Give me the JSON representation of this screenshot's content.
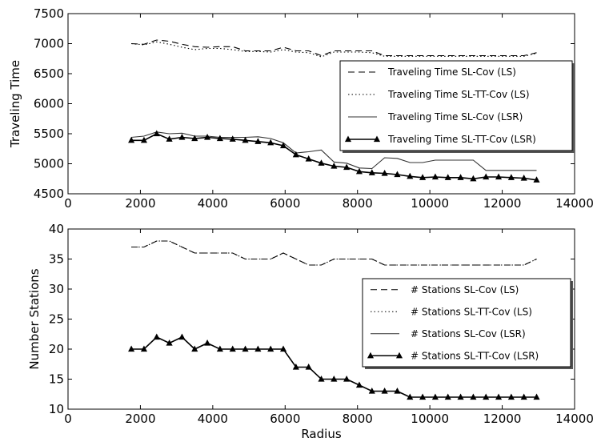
{
  "chart_data": [
    {
      "type": "line",
      "xlabel": "",
      "ylabel": "Traveling Time",
      "xlim": [
        0,
        14000
      ],
      "ylim": [
        4500,
        7500
      ],
      "xticks": [
        0,
        2000,
        4000,
        6000,
        8000,
        10000,
        12000,
        14000
      ],
      "yticks": [
        4500,
        5000,
        5500,
        6000,
        6500,
        7000,
        7500
      ],
      "legend_position": "center-right",
      "x": [
        1750,
        2100,
        2450,
        2800,
        3150,
        3500,
        3850,
        4200,
        4550,
        4900,
        5250,
        5600,
        5950,
        6300,
        6650,
        7000,
        7350,
        7700,
        8050,
        8400,
        8750,
        9100,
        9450,
        9800,
        10150,
        10500,
        10850,
        11200,
        11550,
        11900,
        12250,
        12600,
        12950
      ],
      "series": [
        {
          "name": "Traveling Time SL-Cov (LS)",
          "style": "dashed",
          "marker": "none",
          "values": [
            7000,
            6990,
            7060,
            7040,
            6990,
            6950,
            6940,
            6950,
            6950,
            6880,
            6880,
            6880,
            6940,
            6880,
            6880,
            6800,
            6880,
            6880,
            6880,
            6880,
            6800,
            6800,
            6800,
            6800,
            6800,
            6800,
            6800,
            6800,
            6800,
            6800,
            6800,
            6800,
            6850
          ]
        },
        {
          "name": "Traveling Time SL-TT-Cov (LS)",
          "style": "dotted",
          "marker": "none",
          "values": [
            7000,
            6980,
            7030,
            6990,
            6940,
            6900,
            6920,
            6920,
            6900,
            6870,
            6870,
            6860,
            6900,
            6860,
            6850,
            6780,
            6860,
            6860,
            6860,
            6850,
            6790,
            6790,
            6790,
            6790,
            6790,
            6790,
            6790,
            6790,
            6790,
            6790,
            6790,
            6790,
            6840
          ]
        },
        {
          "name": "Traveling Time SL-Cov (LSR)",
          "style": "solid",
          "marker": "none",
          "values": [
            5440,
            5460,
            5530,
            5500,
            5510,
            5460,
            5460,
            5440,
            5440,
            5440,
            5450,
            5420,
            5350,
            5180,
            5200,
            5230,
            5030,
            5010,
            4930,
            4920,
            5100,
            5090,
            5020,
            5020,
            5060,
            5060,
            5060,
            5060,
            4890,
            4890,
            4890,
            4890,
            4890
          ]
        },
        {
          "name": "Traveling Time SL-TT-Cov (LSR)",
          "style": "solid",
          "marker": "triangle",
          "values": [
            5390,
            5390,
            5500,
            5410,
            5440,
            5420,
            5440,
            5420,
            5410,
            5390,
            5370,
            5350,
            5300,
            5150,
            5080,
            5010,
            4960,
            4940,
            4870,
            4850,
            4840,
            4820,
            4790,
            4770,
            4780,
            4770,
            4770,
            4750,
            4780,
            4780,
            4770,
            4760,
            4730
          ]
        }
      ]
    },
    {
      "type": "line",
      "xlabel": "Radius",
      "ylabel": "Number Stations",
      "xlim": [
        0,
        14000
      ],
      "ylim": [
        10,
        40
      ],
      "xticks": [
        0,
        2000,
        4000,
        6000,
        8000,
        10000,
        12000,
        14000
      ],
      "yticks": [
        10,
        15,
        20,
        25,
        30,
        35,
        40
      ],
      "legend_position": "center-right",
      "x": [
        1750,
        2100,
        2450,
        2800,
        3150,
        3500,
        3850,
        4200,
        4550,
        4900,
        5250,
        5600,
        5950,
        6300,
        6650,
        7000,
        7350,
        7700,
        8050,
        8400,
        8750,
        9100,
        9450,
        9800,
        10150,
        10500,
        10850,
        11200,
        11550,
        11900,
        12250,
        12600,
        12950
      ],
      "series": [
        {
          "name": "# Stations SL-Cov (LS)",
          "style": "dashed",
          "marker": "none",
          "values": [
            37,
            37,
            38,
            38,
            37,
            36,
            36,
            36,
            36,
            35,
            35,
            35,
            36,
            35,
            34,
            34,
            35,
            35,
            35,
            35,
            34,
            34,
            34,
            34,
            34,
            34,
            34,
            34,
            34,
            34,
            34,
            34,
            35
          ]
        },
        {
          "name": "# Stations SL-TT-Cov (LS)",
          "style": "dotted",
          "marker": "none",
          "values": [
            37,
            37,
            38,
            38,
            37,
            36,
            36,
            36,
            36,
            35,
            35,
            35,
            36,
            35,
            34,
            34,
            35,
            35,
            35,
            35,
            34,
            34,
            34,
            34,
            34,
            34,
            34,
            34,
            34,
            34,
            34,
            34,
            35
          ]
        },
        {
          "name": "# Stations SL-Cov (LSR)",
          "style": "solid",
          "marker": "none",
          "values": [
            20,
            20,
            22,
            21,
            22,
            20,
            21,
            20,
            20,
            20,
            20,
            20,
            20,
            17,
            17,
            15,
            15,
            15,
            14,
            13,
            13,
            13,
            12,
            12,
            12,
            12,
            12,
            12,
            12,
            12,
            12,
            12,
            12
          ]
        },
        {
          "name": "# Stations SL-TT-Cov (LSR)",
          "style": "solid",
          "marker": "triangle",
          "values": [
            20,
            20,
            22,
            21,
            22,
            20,
            21,
            20,
            20,
            20,
            20,
            20,
            20,
            17,
            17,
            15,
            15,
            15,
            14,
            13,
            13,
            13,
            12,
            12,
            12,
            12,
            12,
            12,
            12,
            12,
            12,
            12,
            12
          ]
        }
      ]
    }
  ]
}
